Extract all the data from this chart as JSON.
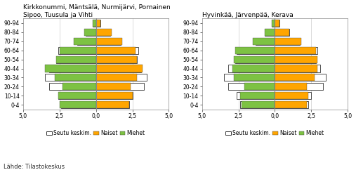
{
  "title1_line1": "Kirkkonummi, Mäntsälä, Nurmijärvi, Pornainen",
  "title1_line2": "Sipoo, Tuusula ja Vihti",
  "title2": "Hyvinkää, Järvenpää, Kerava",
  "footnote": "Lähde: Tilastokeskus",
  "age_groups": [
    "0-4",
    "10-14",
    "20-24",
    "30-34",
    "40-44",
    "50-54",
    "60-64",
    "70-74",
    "80-84",
    "90-94"
  ],
  "chart1": {
    "women": [
      2.3,
      2.5,
      2.4,
      2.8,
      3.2,
      2.8,
      2.7,
      1.8,
      1.1,
      0.3
    ],
    "men": [
      2.5,
      2.6,
      2.3,
      2.8,
      3.5,
      2.7,
      2.5,
      1.5,
      0.8,
      0.2
    ],
    "seutu_women": [
      2.3,
      2.5,
      3.3,
      3.5,
      3.1,
      2.8,
      2.9,
      1.7,
      1.0,
      0.3
    ],
    "seutu_men": [
      2.4,
      2.6,
      3.2,
      3.5,
      3.2,
      2.7,
      2.6,
      1.3,
      0.7,
      0.2
    ]
  },
  "chart2": {
    "women": [
      2.2,
      2.3,
      2.2,
      2.7,
      2.9,
      2.9,
      2.8,
      1.8,
      1.0,
      0.3
    ],
    "men": [
      2.3,
      2.4,
      2.1,
      2.8,
      2.9,
      2.8,
      2.7,
      1.5,
      0.7,
      0.2
    ],
    "seutu_women": [
      2.3,
      2.5,
      3.3,
      3.5,
      3.1,
      2.8,
      2.9,
      1.7,
      1.0,
      0.3
    ],
    "seutu_men": [
      2.4,
      2.6,
      3.2,
      3.5,
      3.2,
      2.7,
      2.6,
      1.3,
      0.7,
      0.2
    ]
  },
  "xlim": 5.0,
  "color_women": "#FFA500",
  "color_men": "#7DC243",
  "color_seutu_face": "#FFFFFF",
  "color_seutu_edge": "#333333",
  "color_grid": "#cccccc",
  "color_vline": "#888888",
  "bar_height": 0.78,
  "tick_fontsize": 5.5,
  "title_fontsize": 6.5,
  "label_fontsize": 5.5,
  "footnote_fontsize": 6.0,
  "bg_color": "#ffffff"
}
